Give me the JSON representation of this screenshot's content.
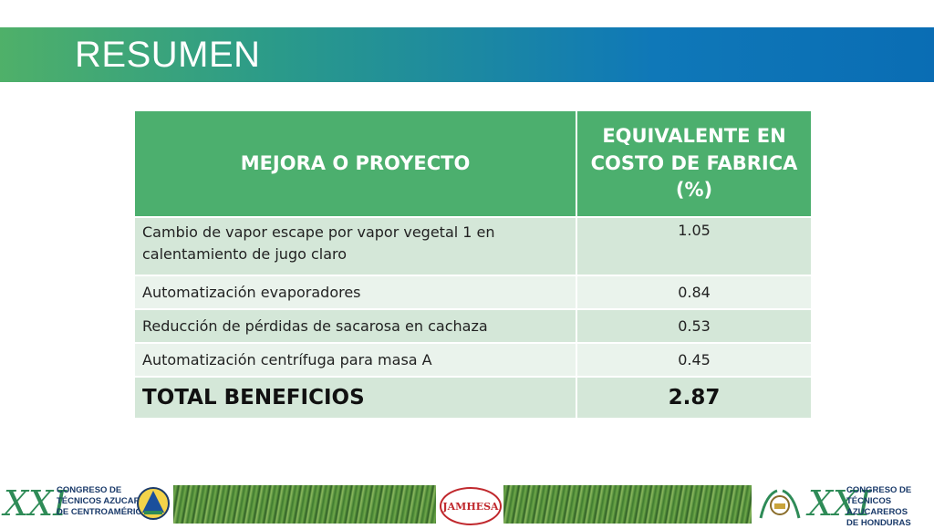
{
  "header": {
    "title": "RESUMEN"
  },
  "table": {
    "columns": [
      "MEJORA O PROYECTO",
      "EQUIVALENTE EN COSTO DE FABRICA (%)"
    ],
    "rows": [
      {
        "project": "Cambio de vapor escape por vapor vegetal 1 en calentamiento de jugo claro",
        "value": "1.05"
      },
      {
        "project": "Automatización evaporadores",
        "value": "0.84"
      },
      {
        "project": "Reducción de pérdidas de sacarosa en cachaza",
        "value": "0.53"
      },
      {
        "project": "Automatización centrífuga para masa A",
        "value": "0.45"
      }
    ],
    "total": {
      "label": "TOTAL BENEFICIOS",
      "value": "2.87"
    }
  },
  "footer": {
    "left_logo": {
      "numeral": "XXI",
      "text_line1": "CONGRESO DE",
      "text_line2": "TÉCNICOS AZUCAREROS",
      "text_line3": "DE CENTROAMÉRICA"
    },
    "center_logo": {
      "text": "JAMHESA"
    },
    "right_logo": {
      "numeral": "XXI",
      "text_line1": "CONGRESO DE",
      "text_line2": "TÉCNICOS AZUCAREROS",
      "text_line3": "DE HONDURAS"
    }
  }
}
